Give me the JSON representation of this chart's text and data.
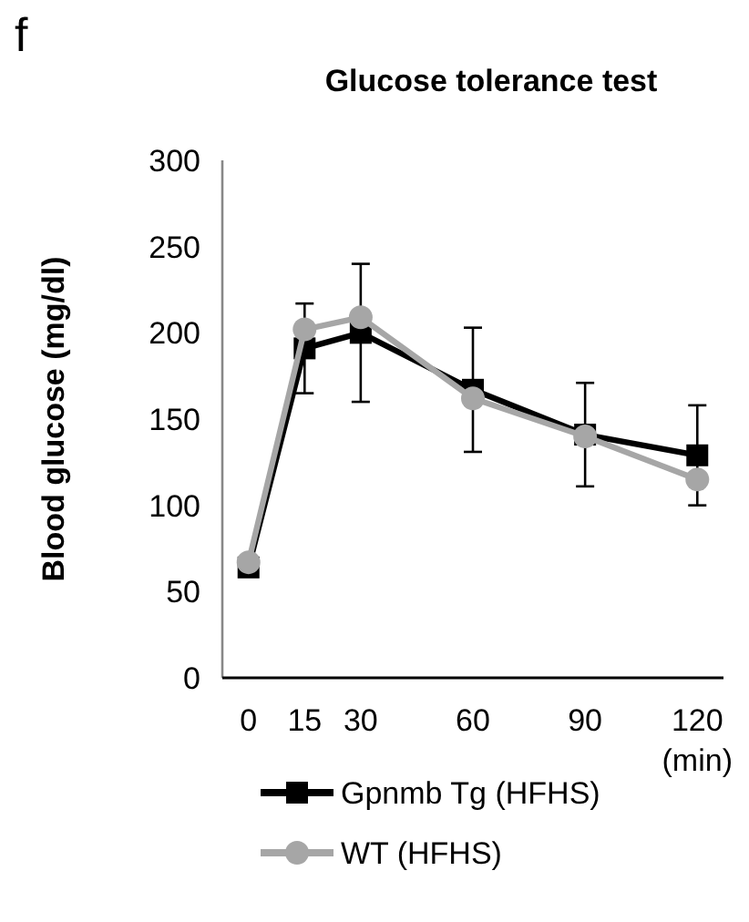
{
  "chart_data": {
    "type": "line",
    "title": "Glucose tolerance test",
    "ylabel": "Blood glucose (mg/dl)",
    "xlabel": "(min)",
    "annotations": [
      "f"
    ],
    "x": [
      0,
      15,
      30,
      60,
      90,
      120
    ],
    "xlim": [
      -7,
      127
    ],
    "xticks": [
      0,
      15,
      30,
      60,
      90,
      120
    ],
    "ylim": [
      0,
      300
    ],
    "yticks": [
      0,
      50,
      100,
      150,
      200,
      250,
      300
    ],
    "grid": false,
    "legend": "bottom",
    "series": [
      {
        "name": "Gpnmb Tg (HFHS)",
        "color": "#000000",
        "marker": "square",
        "values": [
          64,
          191,
          200,
          167,
          141,
          129
        ],
        "errors": [
          null,
          26,
          40,
          36,
          30,
          29
        ]
      },
      {
        "name": "WT (HFHS)",
        "color": "#a6a6a6",
        "marker": "circle",
        "values": [
          67,
          202,
          209,
          162,
          140,
          115
        ]
      }
    ]
  }
}
